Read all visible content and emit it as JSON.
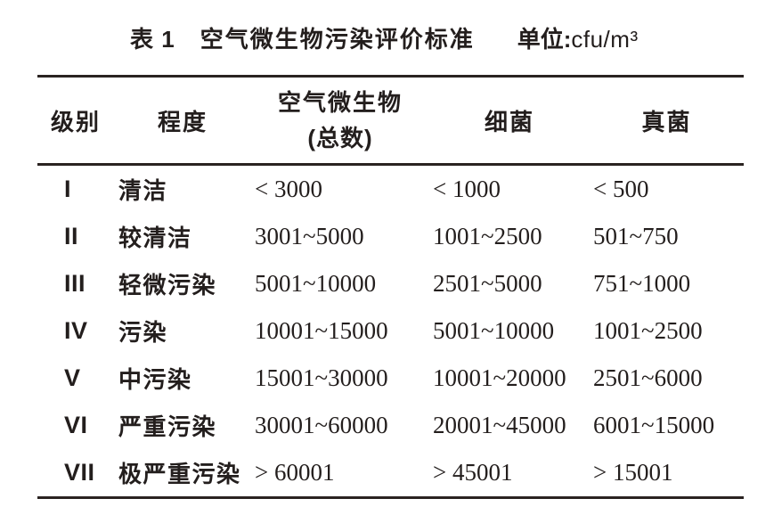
{
  "caption": {
    "table_label": "表 1",
    "title": "空气微生物污染评价标准",
    "unit_label": "单位:",
    "unit_value": "cfu/m³"
  },
  "table": {
    "headers": {
      "grade": "级别",
      "degree": "程度",
      "total_line1": "空气微生物",
      "total_line2": "(总数)",
      "bacteria": "细菌",
      "fungi": "真菌"
    },
    "rows": [
      {
        "grade": "I",
        "degree": "清洁",
        "total": "< 3000",
        "bacteria": "< 1000",
        "fungi": "< 500"
      },
      {
        "grade": "II",
        "degree": "较清洁",
        "total": "3001~5000",
        "bacteria": "1001~2500",
        "fungi": "501~750"
      },
      {
        "grade": "III",
        "degree": "轻微污染",
        "total": "5001~10000",
        "bacteria": "2501~5000",
        "fungi": "751~1000"
      },
      {
        "grade": "IV",
        "degree": "污染",
        "total": "10001~15000",
        "bacteria": "5001~10000",
        "fungi": "1001~2500"
      },
      {
        "grade": "V",
        "degree": "中污染",
        "total": "15001~30000",
        "bacteria": "10001~20000",
        "fungi": "2501~6000"
      },
      {
        "grade": "VI",
        "degree": "严重污染",
        "total": "30001~60000",
        "bacteria": "20001~45000",
        "fungi": "6001~15000"
      },
      {
        "grade": "VII",
        "degree": "极严重污染",
        "total": "> 60001",
        "bacteria": "> 45001",
        "fungi": "> 15001"
      }
    ]
  },
  "colors": {
    "text": "#231e1d",
    "rule": "#2a2321",
    "background": "#ffffff"
  }
}
